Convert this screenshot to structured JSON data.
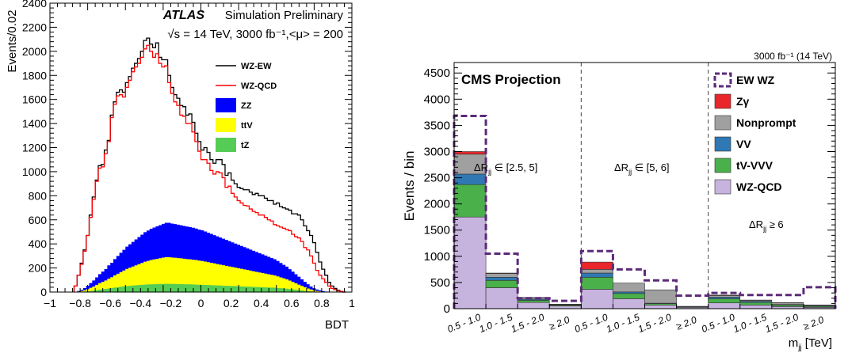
{
  "chart_data": [
    {
      "type": "histogram",
      "title": "ATLAS",
      "subtitle": "Simulation Preliminary",
      "info": [
        "√s = 14 TeV, 3000 fb⁻¹,<μ> = 200"
      ],
      "xlabel": "BDT",
      "ylabel": "Events/0.02",
      "xlim": [
        -1,
        1
      ],
      "ylim": [
        0,
        2400
      ],
      "xticks": [
        "−1",
        "−0.8",
        "−0.6",
        "−0.4",
        "−0.2",
        "0",
        "0.2",
        "0.4",
        "0.6",
        "0.8",
        "1"
      ],
      "yticks": [
        "0",
        "200",
        "400",
        "600",
        "800",
        "1000",
        "1200",
        "1400",
        "1600",
        "1800",
        "2000",
        "2200",
        "2400"
      ],
      "bin_edges_x": [
        -0.84,
        0.96
      ],
      "bin_width": 0.02,
      "legend": [
        {
          "name": "WZ-EW",
          "style": "line",
          "color": "#000000"
        },
        {
          "name": "WZ-QCD",
          "style": "line",
          "color": "#ff0000"
        },
        {
          "name": "ZZ",
          "style": "fill",
          "color": "#0000ff"
        },
        {
          "name": "ttV",
          "style": "fill",
          "color": "#ffff00"
        },
        {
          "name": "tZ",
          "style": "fill",
          "color": "#55cc55"
        }
      ],
      "series": [
        {
          "name": "WZ-QCD",
          "values": [
            50,
            140,
            230,
            340,
            470,
            620,
            770,
            920,
            1030,
            1040,
            1150,
            1250,
            1450,
            1560,
            1630,
            1640,
            1620,
            1700,
            1760,
            1830,
            1870,
            1900,
            1950,
            2020,
            2050,
            2000,
            1950,
            1980,
            1900,
            1870,
            1880,
            1740,
            1650,
            1580,
            1550,
            1470,
            1460,
            1400,
            1400,
            1330,
            1250,
            1170,
            1100,
            1100,
            1070,
            1010,
            980,
            1000,
            990,
            950,
            870,
            880,
            820,
            790,
            760,
            740,
            720,
            715,
            690,
            670,
            660,
            640,
            640,
            620,
            600,
            590,
            560,
            550,
            540,
            530,
            520,
            510,
            480,
            460,
            450,
            420,
            370,
            350,
            300,
            240,
            180,
            140,
            110,
            80,
            50,
            30,
            20,
            10,
            5,
            0
          ]
        },
        {
          "name": "WZ-EW",
          "values": [
            50,
            140,
            240,
            350,
            470,
            640,
            790,
            930,
            1050,
            1060,
            1180,
            1260,
            1470,
            1580,
            1660,
            1680,
            1660,
            1740,
            1790,
            1860,
            1900,
            1940,
            2000,
            2090,
            2110,
            2060,
            2030,
            2070,
            1950,
            1930,
            1930,
            1800,
            1700,
            1640,
            1610,
            1550,
            1540,
            1470,
            1480,
            1410,
            1320,
            1250,
            1180,
            1200,
            1160,
            1100,
            1070,
            1100,
            1100,
            1060,
            970,
            990,
            930,
            900,
            870,
            860,
            850,
            850,
            830,
            810,
            820,
            800,
            800,
            780,
            760,
            760,
            730,
            740,
            710,
            700,
            690,
            680,
            650,
            650,
            640,
            600,
            550,
            510,
            470,
            410,
            330,
            250,
            190,
            140,
            80,
            50,
            30,
            15,
            5,
            0
          ]
        },
        {
          "name": "ZZ",
          "values": [
            2,
            5,
            10,
            18,
            28,
            40,
            50,
            62,
            75,
            85,
            95,
            110,
            120,
            135,
            148,
            160,
            172,
            185,
            195,
            205,
            215,
            225,
            235,
            245,
            252,
            260,
            265,
            270,
            275,
            280,
            285,
            285,
            282,
            280,
            278,
            275,
            272,
            270,
            268,
            265,
            262,
            258,
            255,
            250,
            245,
            240,
            235,
            230,
            225,
            220,
            215,
            210,
            205,
            200,
            195,
            190,
            185,
            180,
            175,
            170,
            165,
            160,
            155,
            150,
            145,
            140,
            135,
            128,
            120,
            112,
            105,
            95,
            85,
            75,
            65,
            55,
            45,
            35,
            25,
            18,
            12,
            8,
            5,
            3,
            2,
            1,
            0,
            0,
            0,
            0
          ]
        },
        {
          "name": "ttV",
          "values": [
            1,
            3,
            6,
            11,
            18,
            26,
            34,
            44,
            54,
            62,
            70,
            82,
            90,
            102,
            112,
            122,
            132,
            142,
            150,
            158,
            166,
            174,
            182,
            190,
            196,
            202,
            206,
            210,
            214,
            218,
            222,
            222,
            220,
            218,
            216,
            214,
            212,
            210,
            208,
            206,
            204,
            200,
            198,
            194,
            190,
            186,
            182,
            178,
            174,
            170,
            166,
            162,
            158,
            154,
            150,
            146,
            142,
            138,
            134,
            130,
            126,
            122,
            118,
            114,
            110,
            106,
            102,
            96,
            90,
            84,
            78,
            70,
            62,
            54,
            46,
            38,
            30,
            22,
            15,
            10,
            6,
            4,
            2,
            1,
            0,
            0,
            0,
            0,
            0,
            0
          ]
        },
        {
          "name": "tZ",
          "values": [
            0,
            1,
            2,
            4,
            6,
            9,
            12,
            16,
            20,
            23,
            26,
            30,
            33,
            37,
            40,
            44,
            47,
            50,
            52,
            54,
            56,
            58,
            60,
            62,
            63,
            64,
            65,
            66,
            67,
            68,
            68,
            68,
            67,
            67,
            66,
            66,
            65,
            64,
            64,
            63,
            62,
            61,
            60,
            59,
            58,
            57,
            56,
            55,
            54,
            53,
            52,
            51,
            50,
            49,
            48,
            47,
            46,
            45,
            44,
            43,
            42,
            41,
            40,
            39,
            38,
            37,
            36,
            34,
            32,
            30,
            28,
            25,
            22,
            19,
            16,
            13,
            10,
            8,
            6,
            4,
            3,
            2,
            1,
            0,
            0,
            0,
            0,
            0,
            0,
            0
          ]
        }
      ]
    },
    {
      "type": "stacked_bar",
      "title": "CMS Projection",
      "lumi": "3000 fb⁻¹ (14 TeV)",
      "xlabel": "m",
      "xlabel_sub": "jj",
      "xlabel_unit": " [TeV]",
      "ylabel": "Events / bin",
      "ylim": [
        0,
        4700
      ],
      "yticks": [
        "0",
        "500",
        "1000",
        "1500",
        "2000",
        "2500",
        "3000",
        "3500",
        "4000",
        "4500"
      ],
      "categories": [
        "0.5 - 1.0",
        "1.0 - 1.5",
        "1.5 - 2.0",
        "≥ 2.0",
        "0.5 - 1.0",
        "1.0 - 1.5",
        "1.5 - 2.0",
        "≥ 2.0",
        "0.5 - 1.0",
        "1.0 - 1.5",
        "1.5 - 2.0",
        "≥ 2.0"
      ],
      "regions": [
        {
          "label": "ΔR",
          "sub": "jj",
          "rest": " ∈ [2.5, 5]"
        },
        {
          "label": "ΔR",
          "sub": "jj",
          "rest": " ∈ [5, 6]"
        },
        {
          "label": "ΔR",
          "sub": "jj",
          "rest": " ≥ 6"
        }
      ],
      "legend": [
        {
          "name": "EW WZ",
          "style": "dashed",
          "color": "#5c2a78"
        },
        {
          "name": "Zγ",
          "style": "fill",
          "color": "#e8262b"
        },
        {
          "name": "Nonprompt",
          "style": "fill",
          "color": "#a0a0a0"
        },
        {
          "name": "VV",
          "style": "fill",
          "color": "#2f78b4"
        },
        {
          "name": "tV-VVV",
          "style": "fill",
          "color": "#4ab04a"
        },
        {
          "name": "WZ-QCD",
          "style": "fill",
          "color": "#c6b3de"
        }
      ],
      "series": [
        {
          "name": "WZ-QCD",
          "values": [
            1750,
            400,
            120,
            50,
            370,
            190,
            70,
            25,
            110,
            70,
            40,
            25
          ]
        },
        {
          "name": "tV-VVV",
          "values": [
            620,
            140,
            40,
            15,
            230,
            100,
            25,
            10,
            80,
            50,
            30,
            20
          ]
        },
        {
          "name": "VV",
          "values": [
            200,
            60,
            20,
            8,
            80,
            30,
            10,
            5,
            30,
            20,
            10,
            10
          ]
        },
        {
          "name": "Nonprompt",
          "values": [
            380,
            70,
            30,
            10,
            70,
            170,
            255,
            5,
            30,
            20,
            30,
            15
          ]
        },
        {
          "name": "Zγ",
          "values": [
            50,
            10,
            5,
            2,
            140,
            0,
            0,
            0,
            10,
            5,
            5,
            2
          ]
        }
      ],
      "ew_wz": [
        3680,
        1050,
        200,
        150,
        1100,
        750,
        540,
        250,
        300,
        260,
        260,
        410
      ]
    }
  ]
}
